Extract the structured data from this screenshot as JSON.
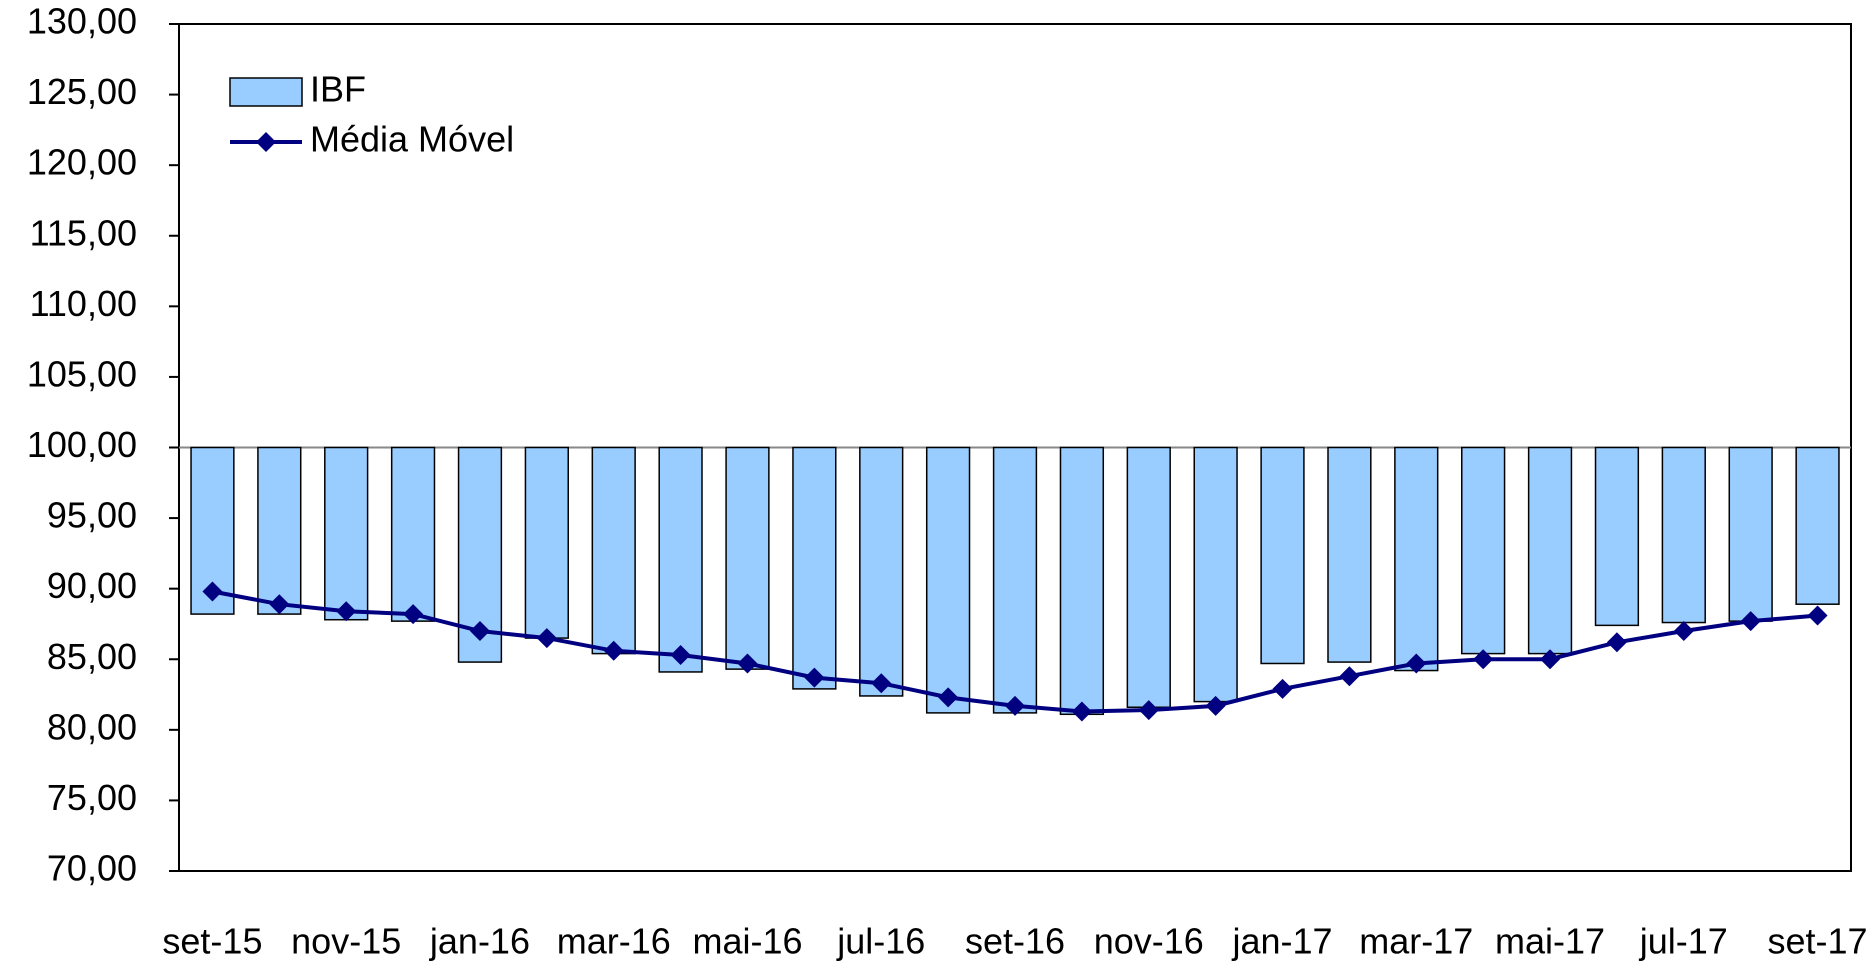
{
  "chart_data": {
    "type": "bar_line",
    "categories": [
      "set-15",
      null,
      "nov-15",
      null,
      "jan-16",
      null,
      "mar-16",
      null,
      "mai-16",
      null,
      "jul-16",
      null,
      "set-16",
      null,
      "nov-16",
      null,
      "jan-17",
      null,
      "mar-17",
      null,
      "mai-17",
      null,
      "jul-17",
      null,
      "set-17"
    ],
    "bar_base": 100,
    "series": [
      {
        "name": "IBF",
        "type": "bar",
        "color": "#99ccff",
        "edge": "#000000",
        "values": [
          88.2,
          88.2,
          87.8,
          87.7,
          84.8,
          86.5,
          85.4,
          84.1,
          84.3,
          82.9,
          82.4,
          81.2,
          81.2,
          81.1,
          81.6,
          82.0,
          84.7,
          84.8,
          84.2,
          85.4,
          85.4,
          87.4,
          87.6,
          87.7,
          88.9
        ]
      },
      {
        "name": "Média Móvel",
        "type": "line",
        "color": "#000080",
        "values": [
          89.8,
          88.9,
          88.4,
          88.2,
          87.0,
          86.5,
          85.6,
          85.3,
          84.7,
          83.7,
          83.3,
          82.3,
          81.7,
          81.3,
          81.4,
          81.7,
          82.9,
          83.8,
          84.7,
          85.0,
          85.0,
          86.2,
          87.0,
          87.7,
          88.1
        ]
      }
    ],
    "ylim": [
      70,
      130
    ],
    "yticks": [
      {
        "value": 70,
        "label": "70,00"
      },
      {
        "value": 75,
        "label": "75,00"
      },
      {
        "value": 80,
        "label": "80,00"
      },
      {
        "value": 85,
        "label": "85,00"
      },
      {
        "value": 90,
        "label": "90,00"
      },
      {
        "value": 95,
        "label": "95,00"
      },
      {
        "value": 100,
        "label": "100,00"
      },
      {
        "value": 105,
        "label": "105,00"
      },
      {
        "value": 110,
        "label": "110,00"
      },
      {
        "value": 115,
        "label": "115,00"
      },
      {
        "value": 120,
        "label": "120,00"
      },
      {
        "value": 125,
        "label": "125,00"
      },
      {
        "value": 130,
        "label": "130,00"
      }
    ],
    "legend": "upper left"
  }
}
